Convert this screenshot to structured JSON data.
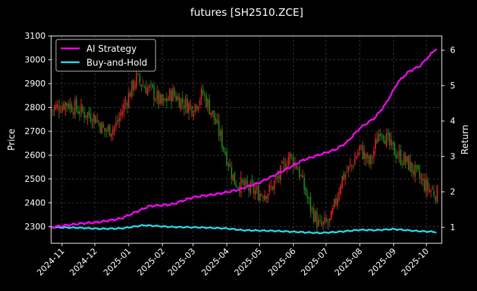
{
  "chart_data": {
    "type": "line",
    "title": "futures [SH2510.ZCE]",
    "ylabel": "Price",
    "y2label": "Return",
    "ylim": [
      2230,
      3100
    ],
    "y2lim": [
      0.55,
      6.4
    ],
    "yticks": [
      2300,
      2400,
      2500,
      2600,
      2700,
      2800,
      2900,
      3000,
      3100
    ],
    "y2ticks": [
      1,
      2,
      3,
      4,
      5,
      6
    ],
    "xlim": [
      "2024-10-22",
      "2025-10-15"
    ],
    "xticks": [
      "2024-11",
      "2024-12",
      "2025-01",
      "2025-02",
      "2025-03",
      "2025-04",
      "2025-05",
      "2025-06",
      "2025-07",
      "2025-08",
      "2025-09",
      "2025-10"
    ],
    "grid": true,
    "legend_position": "top-left",
    "background": "#000000",
    "colors": {
      "up": "#ff1a1a",
      "down": "#0a9a0a",
      "strategy": "#ff00ff",
      "buyhold": "#22e4f0"
    },
    "series": [
      {
        "name": "AI Strategy",
        "axis": "return",
        "x": [
          "2024-10-22",
          "2024-11-15",
          "2024-12-05",
          "2024-12-25",
          "2025-01-20",
          "2025-02-10",
          "2025-03-01",
          "2025-03-25",
          "2025-04-10",
          "2025-04-30",
          "2025-05-20",
          "2025-06-10",
          "2025-06-25",
          "2025-07-10",
          "2025-07-20",
          "2025-08-01",
          "2025-08-15",
          "2025-08-25",
          "2025-09-05",
          "2025-09-15",
          "2025-09-25",
          "2025-10-10"
        ],
        "values": [
          1.0,
          1.1,
          1.15,
          1.25,
          1.6,
          1.65,
          1.85,
          1.95,
          2.05,
          2.25,
          2.55,
          2.9,
          3.05,
          3.2,
          3.4,
          3.8,
          4.1,
          4.5,
          5.1,
          5.4,
          5.55,
          6.05
        ]
      },
      {
        "name": "Buy-and-Hold",
        "axis": "return",
        "x": [
          "2024-10-22",
          "2024-11-15",
          "2024-12-05",
          "2024-12-25",
          "2025-01-15",
          "2025-02-10",
          "2025-03-05",
          "2025-04-01",
          "2025-04-15",
          "2025-05-15",
          "2025-06-05",
          "2025-06-25",
          "2025-07-15",
          "2025-08-01",
          "2025-08-15",
          "2025-09-01",
          "2025-09-20",
          "2025-10-10"
        ],
        "values": [
          1.0,
          0.99,
          0.96,
          0.97,
          1.06,
          1.01,
          1.0,
          0.97,
          0.92,
          0.9,
          0.87,
          0.84,
          0.88,
          0.93,
          0.92,
          0.95,
          0.9,
          0.87
        ]
      }
    ],
    "price_path": {
      "x": [
        "2024-10-22",
        "2024-11-05",
        "2024-11-20",
        "2024-12-01",
        "2024-12-10",
        "2024-12-20",
        "2024-12-30",
        "2025-01-08",
        "2025-01-15",
        "2025-01-22",
        "2025-02-01",
        "2025-02-10",
        "2025-02-20",
        "2025-03-01",
        "2025-03-10",
        "2025-03-20",
        "2025-03-28",
        "2025-04-08",
        "2025-04-20",
        "2025-05-01",
        "2025-05-10",
        "2025-05-20",
        "2025-05-28",
        "2025-06-05",
        "2025-06-15",
        "2025-06-25",
        "2025-07-05",
        "2025-07-15",
        "2025-07-25",
        "2025-08-01",
        "2025-08-10",
        "2025-08-20",
        "2025-08-28",
        "2025-09-05",
        "2025-09-15",
        "2025-09-25",
        "2025-10-02",
        "2025-10-10"
      ],
      "values": [
        2790,
        2820,
        2780,
        2760,
        2700,
        2720,
        2830,
        2920,
        2890,
        2870,
        2810,
        2860,
        2820,
        2800,
        2860,
        2760,
        2650,
        2490,
        2460,
        2440,
        2450,
        2520,
        2600,
        2550,
        2400,
        2300,
        2320,
        2500,
        2560,
        2630,
        2560,
        2720,
        2640,
        2600,
        2560,
        2500,
        2460,
        2440
      ]
    }
  }
}
